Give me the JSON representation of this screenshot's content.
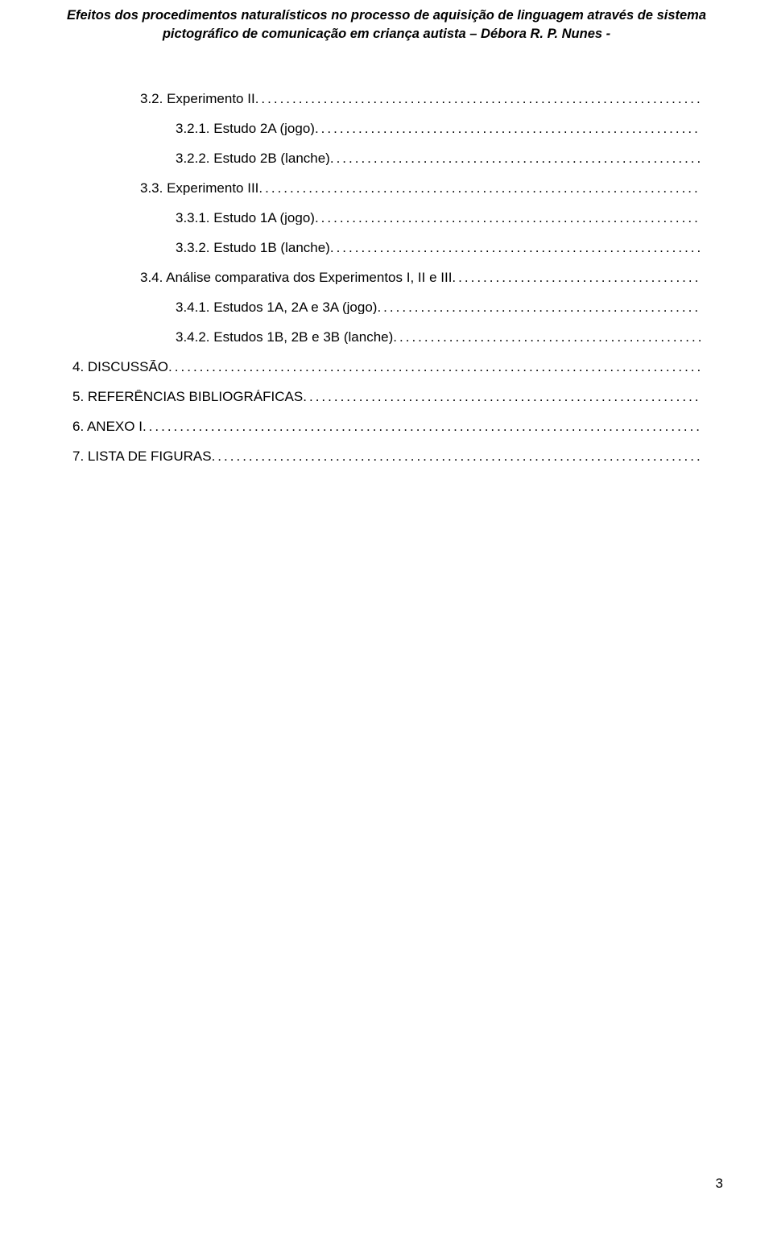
{
  "header": {
    "line1": "Efeitos dos procedimentos naturalísticos no processo de aquisição de linguagem através de sistema",
    "line2": "pictográfico de comunicação em criança autista – Débora R. P. Nunes -"
  },
  "toc": [
    {
      "label": "3.2. Experimento II",
      "indent": 1
    },
    {
      "label": "3.2.1. Estudo 2A (jogo)",
      "indent": 2
    },
    {
      "label": "3.2.2. Estudo 2B (lanche)",
      "indent": 2
    },
    {
      "label": "3.3. Experimento III",
      "indent": 1
    },
    {
      "label": "3.3.1. Estudo 1A (jogo)",
      "indent": 2
    },
    {
      "label": "3.3.2. Estudo 1B (lanche)",
      "indent": 2
    },
    {
      "label": "3.4. Análise comparativa dos Experimentos I, II e  III",
      "indent": 1
    },
    {
      "label": "3.4.1. Estudos 1A, 2A e 3A (jogo)",
      "indent": 2
    },
    {
      "label": "3.4.2. Estudos 1B, 2B e 3B (lanche)",
      "indent": 2
    },
    {
      "label": "4. DISCUSSÃO",
      "indent": 0
    },
    {
      "label": "5. REFERÊNCIAS BIBLIOGRÁFICAS",
      "indent": 0
    },
    {
      "label": "6. ANEXO I",
      "indent": 0
    },
    {
      "label": "7. LISTA DE FIGURAS",
      "indent": 0
    }
  ],
  "colors": {
    "background": "#ffffff",
    "text": "#000000"
  },
  "typography": {
    "header_fontsize": 16.5,
    "header_fontweight": "bold",
    "header_fontstyle": "italic",
    "body_fontsize": 17,
    "font_family": "Arial"
  },
  "page_number": "3"
}
